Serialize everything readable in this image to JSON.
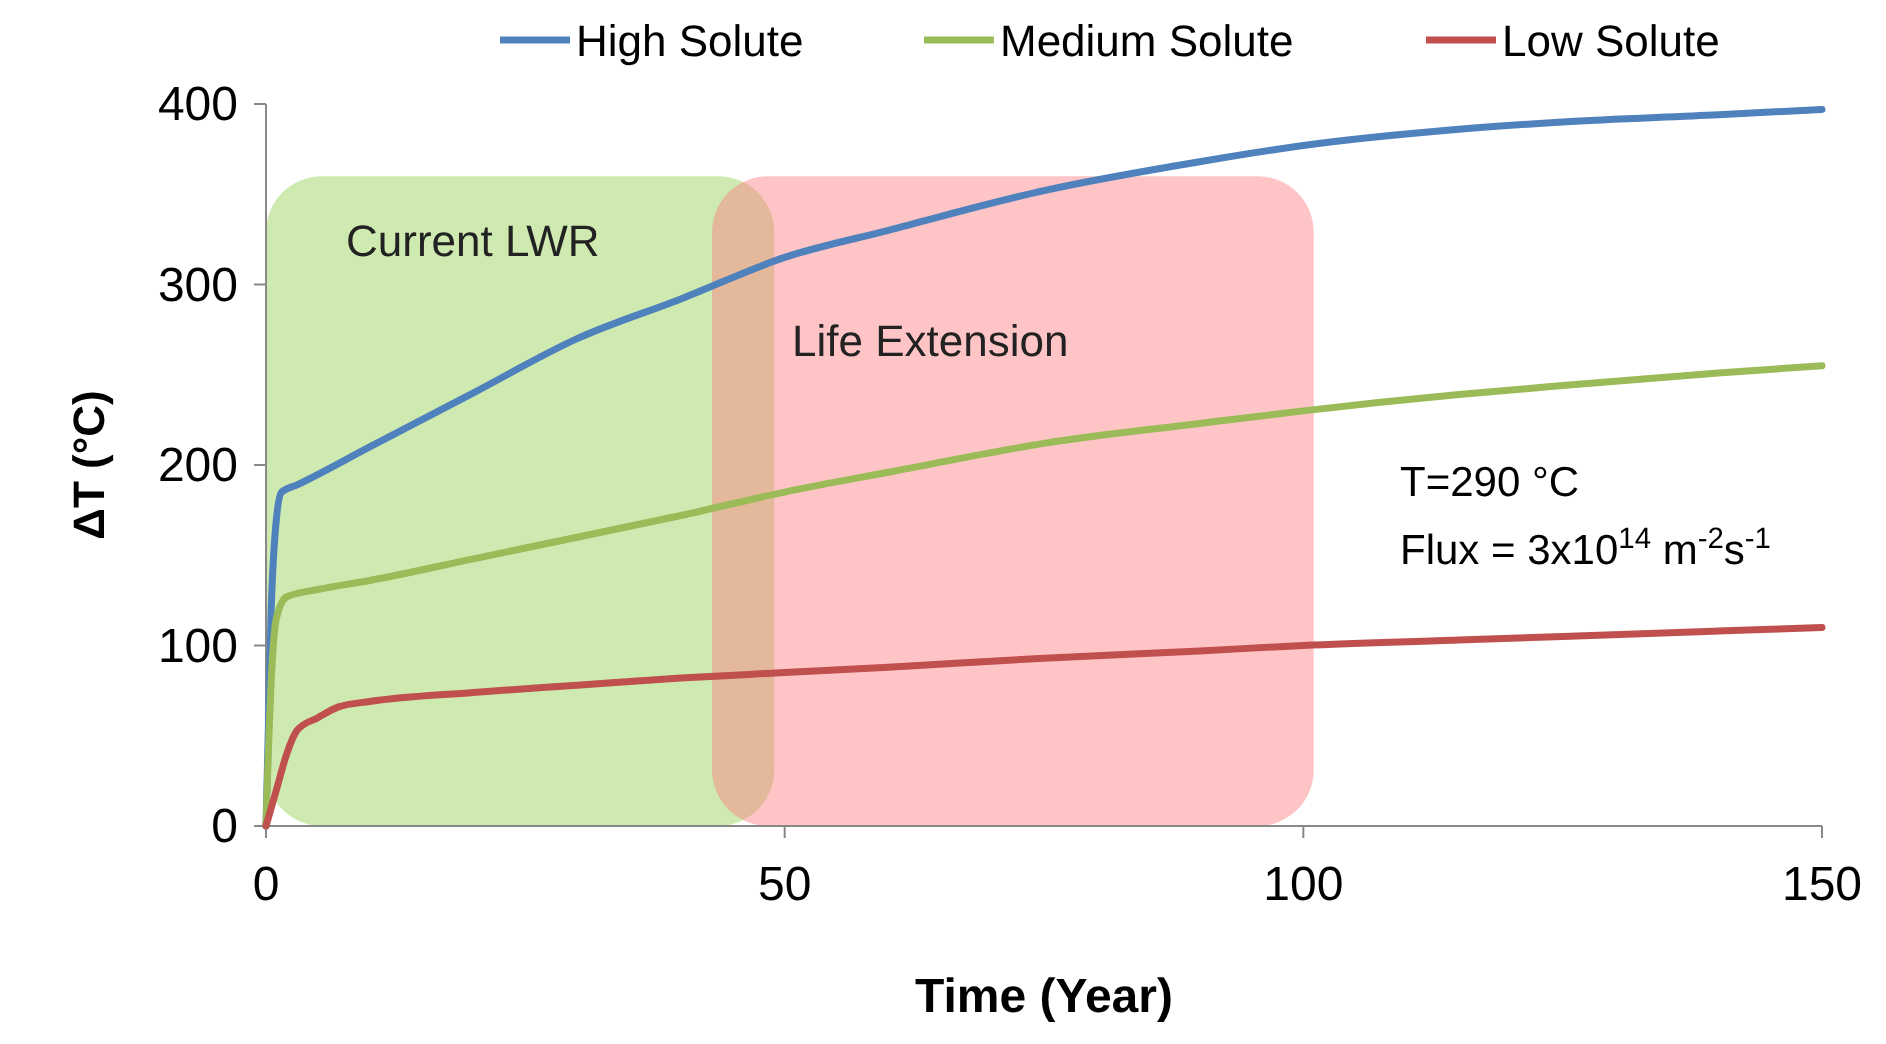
{
  "chart_data": {
    "type": "line",
    "xlabel": "Time (Year)",
    "ylabel": "ΔT (°C)",
    "xlim": [
      0,
      150
    ],
    "xticks": [
      0,
      50,
      100,
      150
    ],
    "ylim": [
      0,
      400
    ],
    "yticks": [
      0,
      100,
      200,
      300,
      400
    ],
    "grid": false,
    "legend": "top",
    "marker": "none",
    "line_style": "solid",
    "series": [
      {
        "name": "High Solute",
        "color": "#4f81bd",
        "x": [
          0,
          0.5,
          1,
          1.5,
          3,
          10,
          20,
          30,
          40,
          50,
          60,
          75,
          90,
          100,
          115,
          125,
          140,
          150
        ],
        "values": [
          0,
          120,
          170,
          185,
          189,
          210,
          240,
          270,
          292,
          315,
          330,
          352,
          368,
          377,
          386,
          390,
          394,
          397
        ]
      },
      {
        "name": "Medium Solute",
        "color": "#9bbb59",
        "x": [
          0,
          0.5,
          1,
          2,
          5,
          10,
          20,
          30,
          40,
          50,
          60,
          75,
          90,
          100,
          115,
          125,
          140,
          150
        ],
        "values": [
          0,
          80,
          115,
          127,
          131,
          136,
          148,
          160,
          172,
          185,
          196,
          212,
          223,
          230,
          239,
          244,
          251,
          255
        ]
      },
      {
        "name": "Low Solute",
        "color": "#c0504d",
        "x": [
          0,
          1,
          2,
          3,
          5,
          7,
          10,
          20,
          30,
          40,
          50,
          60,
          75,
          90,
          100,
          115,
          125,
          140,
          150
        ],
        "values": [
          0,
          20,
          40,
          53,
          60,
          66,
          69,
          74,
          78,
          82,
          85,
          88,
          93,
          97,
          100,
          103,
          105,
          108,
          110
        ]
      }
    ],
    "bands": [
      {
        "axis": "x",
        "from": 0,
        "to": 49,
        "label": "Current LWR",
        "color": "#92d050"
      },
      {
        "axis": "x",
        "from": 43,
        "to": 101,
        "label": "Life Extension",
        "color": "#ff7c80"
      }
    ],
    "annotations": [
      "T=290 °C",
      "Flux = 3x10$^{14}$ m$^{-2}$s$^{-1}$"
    ]
  }
}
